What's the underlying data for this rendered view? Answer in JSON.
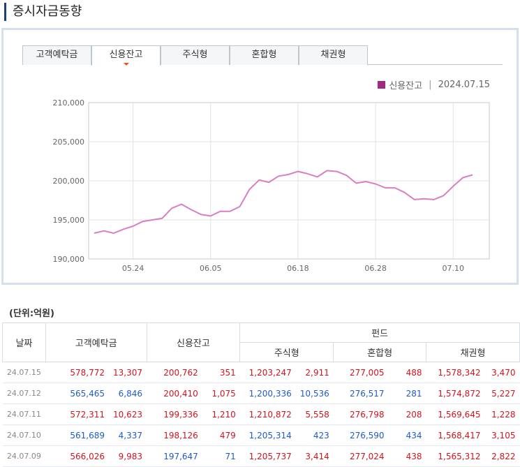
{
  "page_title": "증시자금동향",
  "tabs": [
    {
      "label": "고객예탁금",
      "active": false
    },
    {
      "label": "신용잔고",
      "active": true
    },
    {
      "label": "주식형",
      "active": false
    },
    {
      "label": "혼합형",
      "active": false
    },
    {
      "label": "채권형",
      "active": false
    }
  ],
  "legend": {
    "series": "신용잔고",
    "date": "2024.07.15",
    "separator": "|",
    "color": "#a3297f"
  },
  "chart_data": {
    "type": "line",
    "series": [
      {
        "name": "신용잔고",
        "color": "#d97fc2",
        "values": [
          193300,
          193600,
          193300,
          193800,
          194200,
          194800,
          195000,
          195200,
          196500,
          197000,
          196300,
          195700,
          195500,
          196100,
          196100,
          196700,
          198900,
          200100,
          199800,
          200600,
          200800,
          201200,
          200900,
          200500,
          201300,
          201200,
          200700,
          199700,
          199900,
          199600,
          199100,
          199100,
          198500,
          197600,
          197700,
          197600,
          198100,
          199300,
          200400,
          200762
        ]
      }
    ],
    "x_tick_labels": [
      "05.24",
      "06.05",
      "06.18",
      "06.28",
      "07.10"
    ],
    "x_tick_index": [
      4,
      12,
      21,
      29,
      37
    ],
    "y_ticks": [
      "190,000",
      "195,000",
      "200,000",
      "205,000",
      "210,000"
    ],
    "ylim": [
      190000,
      210000
    ],
    "grid": true
  },
  "unit_label": "(단위:억원)",
  "table": {
    "headers": {
      "date": "날짜",
      "deposit": "고객예탁금",
      "credit": "신용잔고",
      "fund": "펀드",
      "equity": "주식형",
      "mixed": "혼합형",
      "bond": "채권형"
    },
    "rows": [
      {
        "date": "24.07.15",
        "cells": [
          {
            "v": "578,772",
            "c": "red"
          },
          {
            "v": "13,307",
            "c": "red"
          },
          {
            "v": "200,762",
            "c": "red"
          },
          {
            "v": "351",
            "c": "red"
          },
          {
            "v": "1,203,247",
            "c": "red"
          },
          {
            "v": "2,911",
            "c": "red"
          },
          {
            "v": "277,005",
            "c": "red"
          },
          {
            "v": "488",
            "c": "red"
          },
          {
            "v": "1,578,342",
            "c": "red"
          },
          {
            "v": "3,470",
            "c": "red"
          }
        ]
      },
      {
        "date": "24.07.12",
        "cells": [
          {
            "v": "565,465",
            "c": "blue"
          },
          {
            "v": "6,846",
            "c": "blue"
          },
          {
            "v": "200,410",
            "c": "red"
          },
          {
            "v": "1,075",
            "c": "red"
          },
          {
            "v": "1,200,336",
            "c": "blue"
          },
          {
            "v": "10,536",
            "c": "blue"
          },
          {
            "v": "276,517",
            "c": "blue"
          },
          {
            "v": "281",
            "c": "blue"
          },
          {
            "v": "1,574,872",
            "c": "red"
          },
          {
            "v": "5,227",
            "c": "red"
          }
        ]
      },
      {
        "date": "24.07.11",
        "cells": [
          {
            "v": "572,311",
            "c": "red"
          },
          {
            "v": "10,623",
            "c": "red"
          },
          {
            "v": "199,336",
            "c": "red"
          },
          {
            "v": "1,210",
            "c": "red"
          },
          {
            "v": "1,210,872",
            "c": "red"
          },
          {
            "v": "5,558",
            "c": "red"
          },
          {
            "v": "276,798",
            "c": "red"
          },
          {
            "v": "208",
            "c": "red"
          },
          {
            "v": "1,569,645",
            "c": "red"
          },
          {
            "v": "1,228",
            "c": "red"
          }
        ]
      },
      {
        "date": "24.07.10",
        "cells": [
          {
            "v": "561,689",
            "c": "blue"
          },
          {
            "v": "4,337",
            "c": "blue"
          },
          {
            "v": "198,126",
            "c": "red"
          },
          {
            "v": "479",
            "c": "red"
          },
          {
            "v": "1,205,314",
            "c": "blue"
          },
          {
            "v": "423",
            "c": "blue"
          },
          {
            "v": "276,590",
            "c": "blue"
          },
          {
            "v": "434",
            "c": "blue"
          },
          {
            "v": "1,568,417",
            "c": "red"
          },
          {
            "v": "3,105",
            "c": "red"
          }
        ]
      },
      {
        "date": "24.07.09",
        "cells": [
          {
            "v": "566,026",
            "c": "red"
          },
          {
            "v": "9,983",
            "c": "red"
          },
          {
            "v": "197,647",
            "c": "blue"
          },
          {
            "v": "71",
            "c": "blue"
          },
          {
            "v": "1,205,737",
            "c": "red"
          },
          {
            "v": "3,414",
            "c": "red"
          },
          {
            "v": "277,024",
            "c": "red"
          },
          {
            "v": "438",
            "c": "red"
          },
          {
            "v": "1,565,312",
            "c": "red"
          },
          {
            "v": "2,822",
            "c": "red"
          }
        ]
      }
    ]
  }
}
